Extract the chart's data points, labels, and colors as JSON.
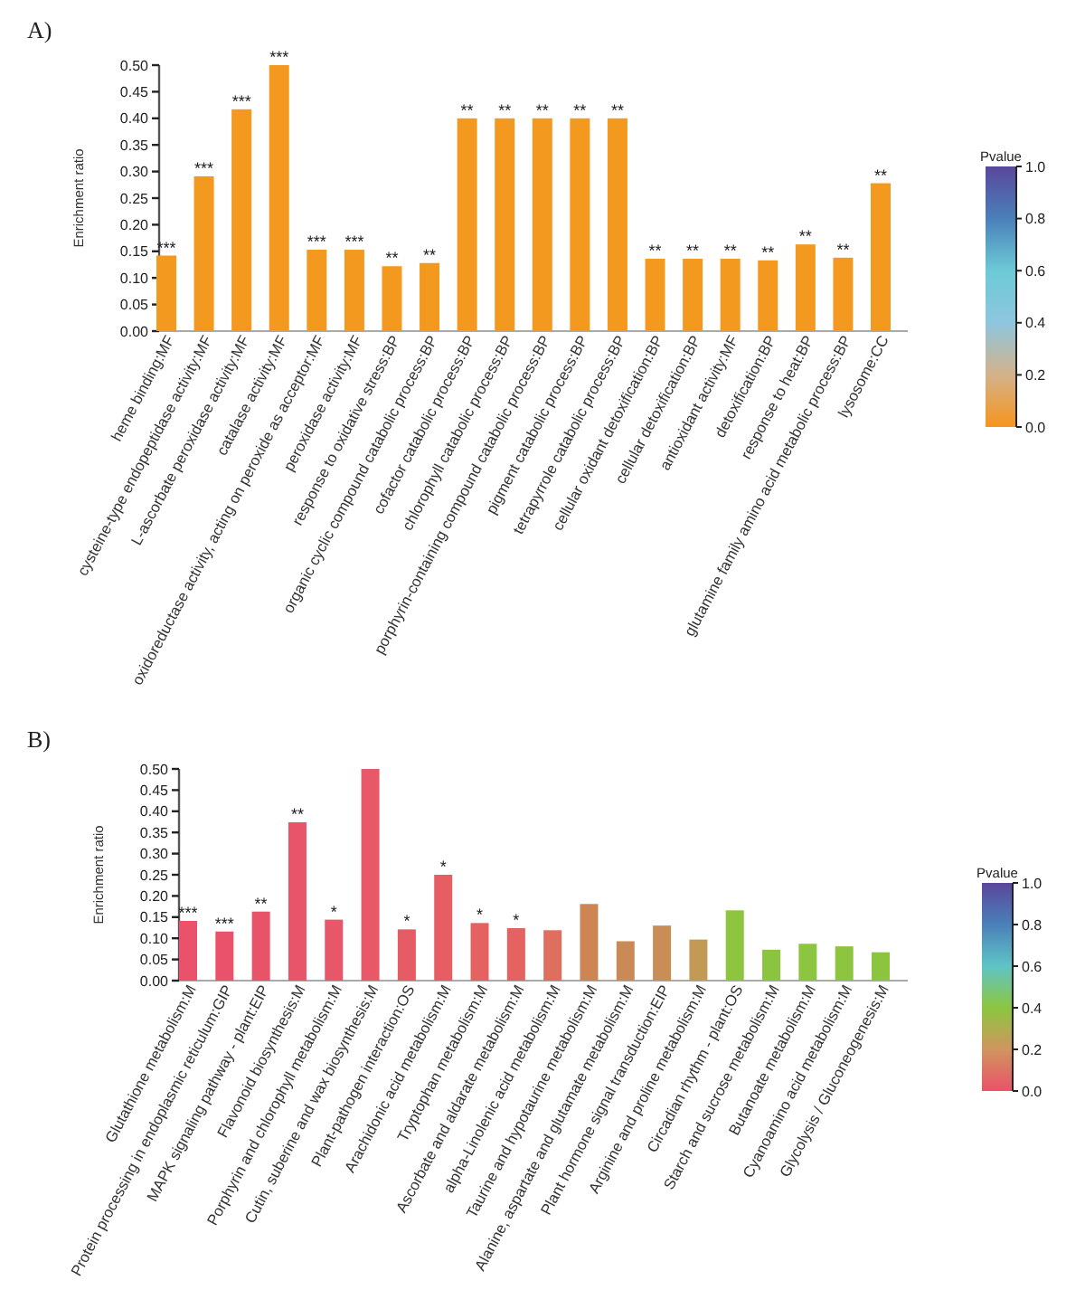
{
  "chart_data": [
    {
      "type": "bar",
      "title": "A)",
      "ylabel": "Enrichment ratio",
      "categories": [
        "heme binding:MF",
        "cysteine-type endopeptidase activity:MF",
        "L-ascorbate peroxidase activity:MF",
        "catalase activity:MF",
        "oxidoreductase activity, acting on peroxide as acceptor:MF",
        "peroxidase activity:MF",
        "response to oxidative stress:BP",
        "organic cyclic compound catabolic process:BP",
        "cofactor catabolic process:BP",
        "chlorophyll catabolic process:BP",
        "porphyrin-containing compound catabolic process:BP",
        "pigment catabolic process:BP",
        "tetrapyrrole catabolic process:BP",
        "cellular oxidant detoxification:BP",
        "cellular detoxification:BP",
        "antioxidant activity:MF",
        "detoxification:BP",
        "response to heat:BP",
        "glutamine family amino acid metabolic process:BP",
        "lysosome:CC"
      ],
      "values": [
        0.142,
        0.291,
        0.417,
        0.5,
        0.153,
        0.153,
        0.122,
        0.128,
        0.4,
        0.4,
        0.4,
        0.4,
        0.4,
        0.136,
        0.136,
        0.136,
        0.133,
        0.163,
        0.138,
        0.278
      ],
      "colors": [
        "#f4991f",
        "#f4991f",
        "#f4991f",
        "#f4991f",
        "#f4991f",
        "#f4991f",
        "#f4991f",
        "#f4991f",
        "#f4991f",
        "#f4991f",
        "#f4991f",
        "#f4991f",
        "#f4991f",
        "#f4991f",
        "#f4991f",
        "#f4991f",
        "#f4991f",
        "#f4991f",
        "#f4991f",
        "#f4991f"
      ],
      "ylim": [
        0,
        0.5
      ],
      "yticks": [
        {
          "value": 0,
          "label": "0.00"
        },
        {
          "value": 0.05,
          "label": "0.05"
        },
        {
          "value": 0.1,
          "label": "0.10"
        },
        {
          "value": 0.15,
          "label": "0.15"
        },
        {
          "value": 0.2,
          "label": "0.20"
        },
        {
          "value": 0.25,
          "label": "0.25"
        },
        {
          "value": 0.3,
          "label": "0.30"
        },
        {
          "value": 0.35,
          "label": "0.35"
        },
        {
          "value": 0.4,
          "label": "0.40"
        },
        {
          "value": 0.45,
          "label": "0.45"
        },
        {
          "value": 0.5,
          "label": "0.50"
        }
      ],
      "annotations": [
        {
          "text": "***",
          "x": "heme binding:MF",
          "y": 0.142
        },
        {
          "text": "***",
          "x": "cysteine-type endopeptidase activity:MF",
          "y": 0.291
        },
        {
          "text": "***",
          "x": "L-ascorbate peroxidase activity:MF",
          "y": 0.417
        },
        {
          "text": "***",
          "x": "catalase activity:MF",
          "y": 0.5
        },
        {
          "text": "***",
          "x": "oxidoreductase activity, acting on peroxide as acceptor:MF",
          "y": 0.153
        },
        {
          "text": "***",
          "x": "peroxidase activity:MF",
          "y": 0.153
        },
        {
          "text": "**",
          "x": "response to oxidative stress:BP",
          "y": 0.122
        },
        {
          "text": "**",
          "x": "organic cyclic compound catabolic process:BP",
          "y": 0.128
        },
        {
          "text": "**",
          "x": "cofactor catabolic process:BP",
          "y": 0.4
        },
        {
          "text": "**",
          "x": "chlorophyll catabolic process:BP",
          "y": 0.4
        },
        {
          "text": "**",
          "x": "porphyrin-containing compound catabolic process:BP",
          "y": 0.4
        },
        {
          "text": "**",
          "x": "pigment catabolic process:BP",
          "y": 0.4
        },
        {
          "text": "**",
          "x": "tetrapyrrole catabolic process:BP",
          "y": 0.4
        },
        {
          "text": "**",
          "x": "cellular oxidant detoxification:BP",
          "y": 0.136
        },
        {
          "text": "**",
          "x": "cellular detoxification:BP",
          "y": 0.136
        },
        {
          "text": "**",
          "x": "antioxidant activity:MF",
          "y": 0.136
        },
        {
          "text": "**",
          "x": "detoxification:BP",
          "y": 0.133
        },
        {
          "text": "**",
          "x": "response to heat:BP",
          "y": 0.163
        },
        {
          "text": "**",
          "x": "glutamine family amino acid metabolic process:BP",
          "y": 0.138
        },
        {
          "text": "**",
          "x": "lysosome:CC",
          "y": 0.278
        }
      ],
      "clabel": "Pvalue",
      "clim": [
        0,
        1
      ],
      "cticks": [
        {
          "value": 0,
          "label": "0.0"
        },
        {
          "value": 0.2,
          "label": "0.2"
        },
        {
          "value": 0.4,
          "label": "0.4"
        },
        {
          "value": 0.6,
          "label": "0.6"
        },
        {
          "value": 0.8,
          "label": "0.8"
        },
        {
          "value": 1,
          "label": "1.0"
        }
      ]
    },
    {
      "type": "bar",
      "title": "B)",
      "ylabel": "Enrichment ratio",
      "categories": [
        "Glutathione metabolism:M",
        "Protein processing in endoplasmic reticulum:GIP",
        "MAPK signaling pathway - plant:EIP",
        "Flavonoid biosynthesis:M",
        "Porphyrin and chlorophyll metabolism:M",
        "Cutin, suberine and wax biosynthesis:M",
        "Plant-pathogen interaction:OS",
        "Arachidonic acid metabolism:M",
        "Tryptophan metabolism:M",
        "Ascorbate and aldarate metabolism:M",
        "alpha-Linolenic acid metabolism:M",
        "Taurine and hypotaurine metabolism:M",
        "Alanine, aspartate and glutamate metabolism:M",
        "Plant hormone signal transduction:EIP",
        "Arginine and proline metabolism:M",
        "Circadian rhythm - plant:OS",
        "Starch and sucrose metabolism:M",
        "Butanoate metabolism:M",
        "Cyanoamino acid metabolism:M",
        "Glycolysis / Gluconeogenesis:M"
      ],
      "values": [
        0.141,
        0.116,
        0.163,
        0.374,
        0.144,
        0.5,
        0.121,
        0.25,
        0.136,
        0.124,
        0.119,
        0.181,
        0.093,
        0.13,
        0.097,
        0.166,
        0.073,
        0.087,
        0.081,
        0.067
      ],
      "colors": [
        "#e9526a",
        "#e9526a",
        "#e9536a",
        "#e8546a",
        "#e8566a",
        "#e85868",
        "#e65c64",
        "#e65e63",
        "#e46260",
        "#e4625f",
        "#de6e5d",
        "#cd8553",
        "#ca8a55",
        "#c98e55",
        "#c39a55",
        "#8ec540",
        "#8bc540",
        "#8cc540",
        "#8dc540",
        "#8cc43f"
      ],
      "ylim": [
        0,
        0.5
      ],
      "yticks": [
        {
          "value": 0,
          "label": "0.00"
        },
        {
          "value": 0.05,
          "label": "0.05"
        },
        {
          "value": 0.1,
          "label": "0.10"
        },
        {
          "value": 0.15,
          "label": "0.15"
        },
        {
          "value": 0.2,
          "label": "0.20"
        },
        {
          "value": 0.25,
          "label": "0.25"
        },
        {
          "value": 0.3,
          "label": "0.30"
        },
        {
          "value": 0.35,
          "label": "0.35"
        },
        {
          "value": 0.4,
          "label": "0.40"
        },
        {
          "value": 0.45,
          "label": "0.45"
        },
        {
          "value": 0.5,
          "label": "0.50"
        }
      ],
      "annotations": [
        {
          "text": "***",
          "x": "Glutathione metabolism:M",
          "y": 0.141
        },
        {
          "text": "***",
          "x": "Protein processing in endoplasmic reticulum:GIP",
          "y": 0.116
        },
        {
          "text": "**",
          "x": "MAPK signaling pathway - plant:EIP",
          "y": 0.163
        },
        {
          "text": "**",
          "x": "Flavonoid biosynthesis:M",
          "y": 0.374
        },
        {
          "text": "*",
          "x": "Porphyrin and chlorophyll metabolism:M",
          "y": 0.144
        },
        {
          "text": "*",
          "x": "Plant-pathogen interaction:OS",
          "y": 0.121
        },
        {
          "text": "*",
          "x": "Arachidonic acid metabolism:M",
          "y": 0.25
        },
        {
          "text": "*",
          "x": "Tryptophan metabolism:M",
          "y": 0.136
        },
        {
          "text": "*",
          "x": "Ascorbate and aldarate metabolism:M",
          "y": 0.124
        }
      ],
      "clabel": "Pvalue",
      "clim": [
        0,
        1
      ],
      "cticks": [
        {
          "value": 0,
          "label": "0.0"
        },
        {
          "value": 0.2,
          "label": "0.2"
        },
        {
          "value": 0.4,
          "label": "0.4"
        },
        {
          "value": 0.6,
          "label": "0.6"
        },
        {
          "value": 0.8,
          "label": "0.8"
        },
        {
          "value": 1,
          "label": "1.0"
        }
      ]
    }
  ]
}
